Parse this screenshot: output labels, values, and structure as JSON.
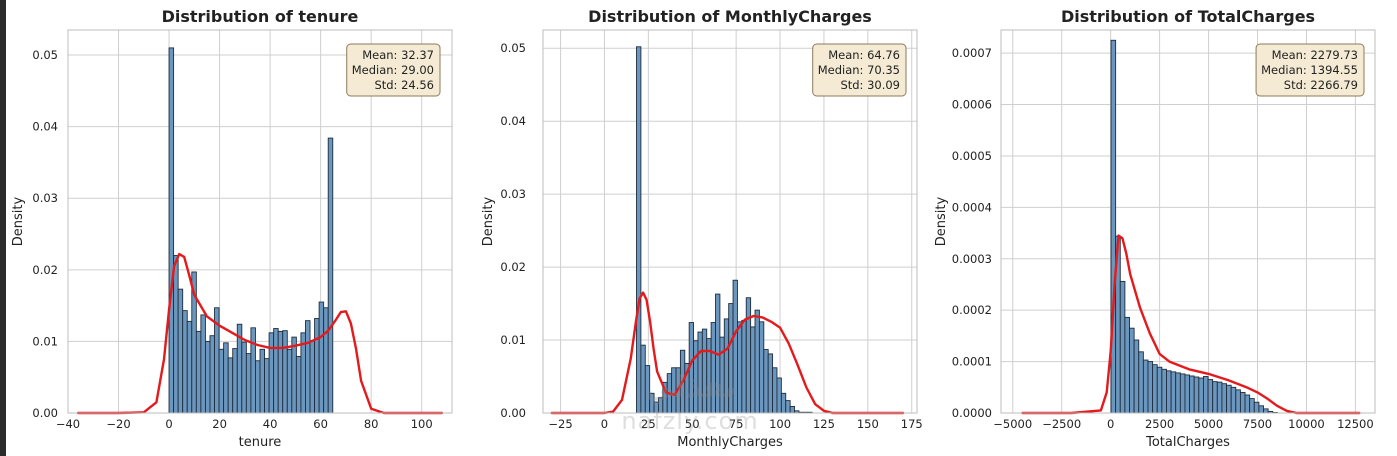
{
  "watermark": {
    "arabic": "نفذلي",
    "latin": "nafzly.com"
  },
  "colors": {
    "bar": "#6b97bf",
    "bar_edge": "#1f2d3d",
    "kde": "#e41a1c",
    "stats_bg": "#f5ebd4",
    "stats_edge": "#8c7a5b",
    "grid": "#cfcfcf"
  },
  "chart_data": [
    {
      "type": "histogram",
      "title": "Distribution of tenure",
      "xlabel": "tenure",
      "ylabel": "Density",
      "xlim": [
        -40,
        112
      ],
      "ylim": [
        0,
        0.0535
      ],
      "xticks": [
        -40,
        -20,
        0,
        20,
        40,
        60,
        80,
        100
      ],
      "yticks": [
        0.0,
        0.01,
        0.02,
        0.03,
        0.04,
        0.05
      ],
      "ytick_decimals": 2,
      "grid": true,
      "bins": {
        "start": 0,
        "width": 1.8,
        "density": [
          0.051,
          0.022,
          0.0173,
          0.0143,
          0.0128,
          0.0197,
          0.0114,
          0.0137,
          0.01,
          0.0108,
          0.0147,
          0.0089,
          0.0098,
          0.0077,
          0.009,
          0.0124,
          0.0099,
          0.0083,
          0.0119,
          0.0073,
          0.0089,
          0.0076,
          0.0112,
          0.0118,
          0.0114,
          0.0115,
          0.0089,
          0.0106,
          0.0079,
          0.0112,
          0.0129,
          0.0101,
          0.0132,
          0.0155,
          0.0147,
          0.0384
        ]
      },
      "kde": {
        "x": [
          -36,
          -20,
          -10,
          -5,
          -2,
          0,
          2,
          4,
          6,
          8,
          10,
          15,
          20,
          25,
          30,
          35,
          40,
          45,
          50,
          55,
          60,
          63,
          66,
          68,
          70,
          72,
          74,
          76,
          80,
          85,
          90,
          100,
          108
        ],
        "y": [
          0,
          0,
          0.0001,
          0.0015,
          0.0075,
          0.0145,
          0.0205,
          0.0222,
          0.0218,
          0.0192,
          0.0165,
          0.0135,
          0.0122,
          0.0112,
          0.0102,
          0.0095,
          0.0091,
          0.0091,
          0.0094,
          0.0098,
          0.0106,
          0.0115,
          0.013,
          0.0141,
          0.0142,
          0.0125,
          0.009,
          0.0045,
          0.0006,
          0,
          0,
          0,
          0
        ]
      },
      "stats": {
        "mean": "Mean: 32.37",
        "median": "Median: 29.00",
        "std": "Std: 24.56"
      }
    },
    {
      "type": "histogram",
      "title": "Distribution of MonthlyCharges",
      "xlabel": "MonthlyCharges",
      "ylabel": "Density",
      "xlim": [
        -35,
        178
      ],
      "ylim": [
        0,
        0.0525
      ],
      "xticks": [
        -25,
        0,
        25,
        50,
        75,
        100,
        125,
        150,
        175
      ],
      "yticks": [
        0.0,
        0.01,
        0.02,
        0.03,
        0.04,
        0.05
      ],
      "ytick_decimals": 2,
      "grid": true,
      "bins": {
        "start": 18.25,
        "width": 2.5,
        "density": [
          0.0502,
          0.0093,
          0.0065,
          0.0027,
          0.0015,
          0.0021,
          0.0042,
          0.0054,
          0.0062,
          0.0062,
          0.0086,
          0.0068,
          0.0124,
          0.0099,
          0.0111,
          0.0115,
          0.0102,
          0.0124,
          0.0163,
          0.0104,
          0.0129,
          0.015,
          0.0182,
          0.0125,
          0.0127,
          0.0158,
          0.0118,
          0.0141,
          0.0125,
          0.0087,
          0.0081,
          0.0062,
          0.0048,
          0.0027,
          0.0017,
          0.0009,
          0.0003,
          0.0001,
          0.0001,
          0.0001
        ]
      },
      "kde": {
        "x": [
          -30,
          0,
          5,
          10,
          15,
          18,
          20,
          22,
          24,
          26,
          28,
          30,
          35,
          40,
          45,
          50,
          55,
          60,
          65,
          70,
          75,
          80,
          85,
          90,
          95,
          100,
          105,
          110,
          115,
          120,
          125,
          130,
          150,
          170
        ],
        "y": [
          0,
          0,
          0.0002,
          0.0018,
          0.0075,
          0.0127,
          0.0157,
          0.0165,
          0.0155,
          0.0125,
          0.0088,
          0.0057,
          0.0028,
          0.0025,
          0.0045,
          0.0072,
          0.0085,
          0.0085,
          0.008,
          0.0088,
          0.0112,
          0.0128,
          0.0133,
          0.0131,
          0.0125,
          0.0117,
          0.0095,
          0.0066,
          0.0035,
          0.0012,
          0.0003,
          0,
          0,
          0
        ]
      },
      "stats": {
        "mean": "Mean: 64.76",
        "median": "Median: 70.35",
        "std": "Std: 30.09"
      }
    },
    {
      "type": "histogram",
      "title": "Distribution of TotalCharges",
      "xlabel": "TotalCharges",
      "ylabel": "Density",
      "xlim": [
        -5600,
        13500
      ],
      "ylim": [
        0,
        0.000745
      ],
      "xticks": [
        -5000,
        -2500,
        0,
        2500,
        5000,
        7500,
        10000,
        12500
      ],
      "yticks": [
        0.0,
        0.0001,
        0.0002,
        0.0003,
        0.0004,
        0.0005,
        0.0006,
        0.0007
      ],
      "ytick_decimals": 4,
      "grid": true,
      "bins": {
        "start": 18.8,
        "width": 236,
        "density": [
          0.000725,
          0.000344,
          0.000256,
          0.000186,
          0.000165,
          0.000142,
          0.000119,
          0.000103,
          0.0001,
          9.4e-05,
          8.9e-05,
          8.5e-05,
          8.2e-05,
          8e-05,
          7.8e-05,
          7.6e-05,
          7.4e-05,
          7.2e-05,
          7e-05,
          6.8e-05,
          7.1e-05,
          6.5e-05,
          6.1e-05,
          6e-05,
          5.7e-05,
          5.4e-05,
          5e-05,
          4.5e-05,
          4e-05,
          3.5e-05,
          2.8e-05,
          2.1e-05,
          1.4e-05,
          8e-06,
          3e-06,
          1e-06
        ]
      },
      "kde": {
        "x": [
          -4500,
          -2000,
          -500,
          -200,
          0,
          200,
          400,
          600,
          800,
          1000,
          1500,
          2000,
          2500,
          3000,
          4000,
          5000,
          6000,
          7000,
          7500,
          8000,
          8500,
          9000,
          9500,
          12700
        ],
        "y": [
          0,
          0,
          5e-06,
          4e-05,
          0.00012,
          0.00025,
          0.000345,
          0.00034,
          0.00031,
          0.00027,
          0.000205,
          0.000155,
          0.000115,
          0.0001,
          8.5e-05,
          7.6e-05,
          6.4e-05,
          4.9e-05,
          4e-05,
          2.8e-05,
          1.4e-05,
          4e-06,
          0,
          0
        ]
      },
      "stats": {
        "mean": "Mean: 2279.73",
        "median": "Median: 1394.55",
        "std": "Std: 2266.79"
      }
    }
  ]
}
